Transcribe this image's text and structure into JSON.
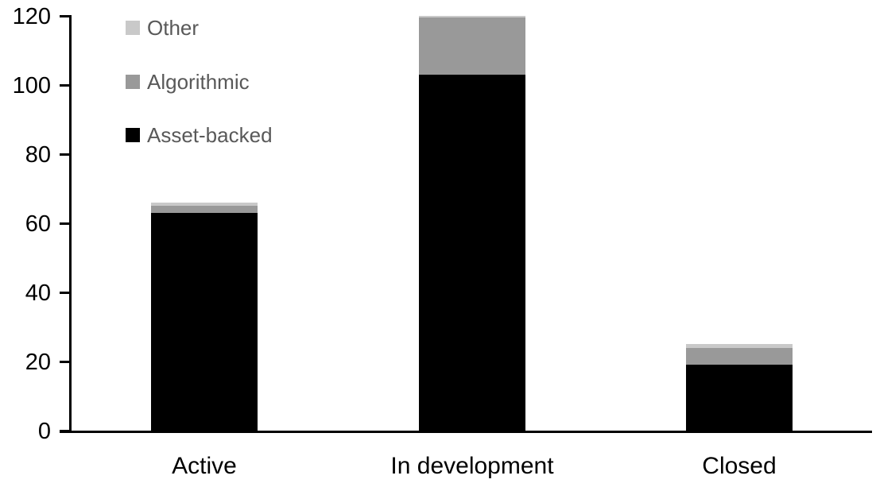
{
  "chart_data": {
    "type": "bar",
    "stacked": true,
    "title": "",
    "xlabel": "",
    "ylabel": "",
    "grid": false,
    "categories": [
      "Active",
      "In development",
      "Closed"
    ],
    "series": [
      {
        "name": "Asset-backed",
        "color": "#000000",
        "values": [
          63,
          103,
          19
        ]
      },
      {
        "name": "Algorithmic",
        "color": "#999999",
        "values": [
          2,
          17,
          5
        ]
      },
      {
        "name": "Other",
        "color": "#c9c9c9",
        "values": [
          1,
          0,
          1
        ]
      }
    ],
    "totals": [
      66,
      120,
      25
    ],
    "yticks": [
      0,
      20,
      40,
      60,
      80,
      100,
      120
    ],
    "ylim": [
      0,
      120
    ],
    "legend": {
      "position": "top-left",
      "order": [
        "Other",
        "Algorithmic",
        "Asset-backed"
      ],
      "text_color": "#595959"
    },
    "axis_color": "#000000",
    "tick_label_color": "#000000"
  }
}
